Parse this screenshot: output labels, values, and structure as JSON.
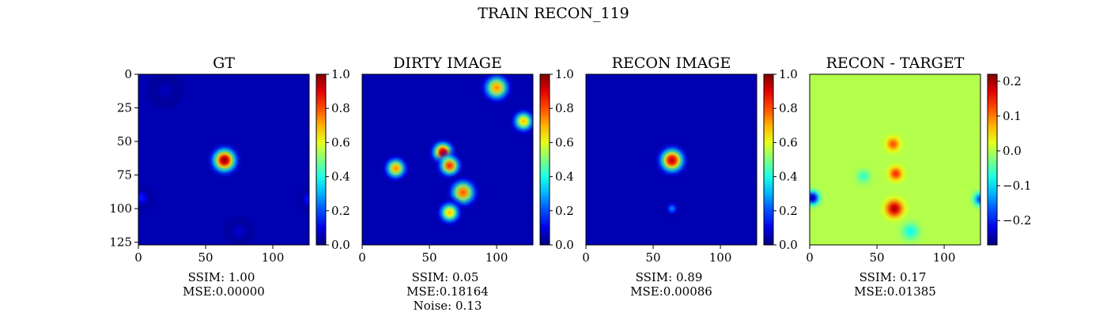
{
  "figure_title": "TRAIN RECON_119",
  "chart_data": [
    {
      "type": "heatmap",
      "title": "GT",
      "colormap": "jet",
      "grid": false,
      "xlim": [
        0,
        127
      ],
      "ylim": [
        127,
        0
      ],
      "x_ticks": [
        "0",
        "50",
        "100"
      ],
      "y_ticks": [
        "0",
        "25",
        "50",
        "75",
        "100",
        "125"
      ],
      "colorbar_range": [
        0.0,
        1.0
      ],
      "colorbar_ticks": [
        "0.0",
        "0.2",
        "0.4",
        "0.6",
        "0.8",
        "1.0"
      ],
      "caption": [
        "SSIM: 1.00",
        "MSE:0.00000"
      ],
      "features": [
        {
          "x": 64,
          "y": 64,
          "sigma": 6,
          "value": 1.0
        },
        {
          "x": 2,
          "y": 92,
          "sigma": 4,
          "value": 0.15
        },
        {
          "x": 127,
          "y": 93,
          "sigma": 4,
          "value": 0.15
        },
        {
          "x": 75,
          "y": 117,
          "sigma": 5,
          "value": 0.08
        },
        {
          "x": 20,
          "y": 12,
          "sigma": 6,
          "value": 0.06
        }
      ]
    },
    {
      "type": "heatmap",
      "title": "DIRTY IMAGE",
      "colormap": "jet",
      "grid": false,
      "xlim": [
        0,
        127
      ],
      "ylim": [
        127,
        0
      ],
      "x_ticks": [
        "0",
        "50",
        "100"
      ],
      "y_ticks": [],
      "colorbar_range": [
        0.0,
        1.0
      ],
      "colorbar_ticks": [
        "0.0",
        "0.2",
        "0.4",
        "0.6",
        "0.8",
        "1.0"
      ],
      "caption": [
        "SSIM: 0.05",
        "MSE:0.18164",
        "Noise: 0.13"
      ],
      "features": [
        {
          "x": 60,
          "y": 58,
          "sigma": 5,
          "value": 0.95
        },
        {
          "x": 65,
          "y": 68,
          "sigma": 5,
          "value": 0.85
        },
        {
          "x": 75,
          "y": 88,
          "sigma": 6,
          "value": 0.8
        },
        {
          "x": 100,
          "y": 10,
          "sigma": 6,
          "value": 0.75
        },
        {
          "x": 25,
          "y": 70,
          "sigma": 5,
          "value": 0.75
        },
        {
          "x": 120,
          "y": 35,
          "sigma": 5,
          "value": 0.7
        },
        {
          "x": 65,
          "y": 103,
          "sigma": 5,
          "value": 0.7
        }
      ]
    },
    {
      "type": "heatmap",
      "title": "RECON IMAGE",
      "colormap": "jet",
      "grid": false,
      "xlim": [
        0,
        127
      ],
      "ylim": [
        127,
        0
      ],
      "x_ticks": [
        "0",
        "50",
        "100"
      ],
      "y_ticks": [],
      "colorbar_range": [
        0.0,
        1.0
      ],
      "colorbar_ticks": [
        "0.0",
        "0.2",
        "0.4",
        "0.6",
        "0.8",
        "1.0"
      ],
      "caption": [
        "SSIM: 0.89",
        "MSE:0.00086"
      ],
      "features": [
        {
          "x": 64,
          "y": 64,
          "sigma": 6,
          "value": 0.95
        },
        {
          "x": 64,
          "y": 100,
          "sigma": 3,
          "value": 0.25
        }
      ]
    },
    {
      "type": "heatmap",
      "title": "RECON - TARGET",
      "colormap": "jet",
      "grid": false,
      "xlim": [
        0,
        127
      ],
      "ylim": [
        127,
        0
      ],
      "x_ticks": [
        "0",
        "50",
        "100"
      ],
      "y_ticks": [],
      "colorbar_range": [
        -0.27,
        0.22
      ],
      "colorbar_ticks": [
        "0.2",
        "0.1",
        "0.0",
        "−0.1",
        "−0.2"
      ],
      "caption": [
        "SSIM: 0.17",
        "MSE:0.01385"
      ],
      "features": [
        {
          "x": 62,
          "y": 52,
          "sigma": 4,
          "value": 0.12
        },
        {
          "x": 64,
          "y": 74,
          "sigma": 4,
          "value": 0.14
        },
        {
          "x": 63,
          "y": 100,
          "sigma": 5,
          "value": 0.2
        },
        {
          "x": 2,
          "y": 92,
          "sigma": 4,
          "value": -0.25
        },
        {
          "x": 127,
          "y": 93,
          "sigma": 4,
          "value": -0.18
        },
        {
          "x": 75,
          "y": 117,
          "sigma": 5,
          "value": -0.08
        },
        {
          "x": 40,
          "y": 76,
          "sigma": 4,
          "value": -0.06
        }
      ]
    }
  ]
}
